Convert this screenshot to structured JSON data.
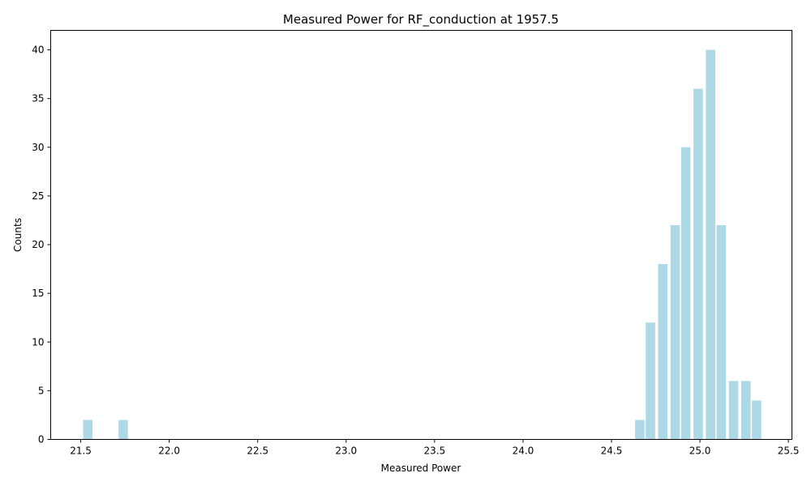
{
  "chart_data": {
    "type": "bar",
    "title": "Measured Power for RF_conduction at 1957.5",
    "xlabel": "Measured Power",
    "ylabel": "Counts",
    "xlim": [
      21.33,
      25.52
    ],
    "ylim": [
      0,
      42
    ],
    "x_ticks": [
      21.5,
      22.0,
      22.5,
      23.0,
      23.5,
      24.0,
      24.5,
      25.0,
      25.5
    ],
    "x_tick_labels": [
      "21.5",
      "22.0",
      "22.5",
      "23.0",
      "23.5",
      "24.0",
      "24.5",
      "25.0",
      "25.5"
    ],
    "y_ticks": [
      0,
      5,
      10,
      15,
      20,
      25,
      30,
      35,
      40
    ],
    "y_tick_labels": [
      "0",
      "5",
      "10",
      "15",
      "20",
      "25",
      "30",
      "35",
      "40"
    ],
    "bar_width": 0.053,
    "bar_color": "#add8e6",
    "grid": false,
    "legend": "none",
    "x": [
      21.54,
      21.74,
      24.66,
      24.72,
      24.79,
      24.86,
      24.92,
      24.99,
      25.06,
      25.12,
      25.19,
      25.26,
      25.32
    ],
    "values": [
      2,
      2,
      2,
      12,
      18,
      22,
      30,
      36,
      40,
      22,
      6,
      6,
      4
    ]
  }
}
